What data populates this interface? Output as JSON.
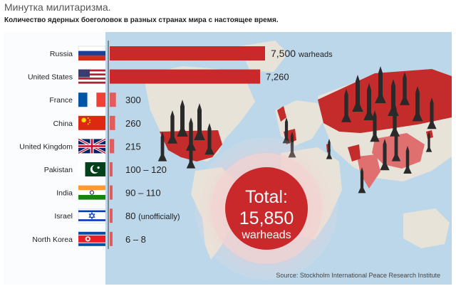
{
  "header": {
    "title": "Минутка милитаризма.",
    "subtitle": "Количество ядерных боеголовок в разных странах мира с настоящее время."
  },
  "colors": {
    "bar": "#c9292b",
    "bar_light": "#e35b5d",
    "ocean": "#bcd7ea",
    "land": "#e8e3d9",
    "highlight": "#c42b2b"
  },
  "chart_data": {
    "type": "bar",
    "orientation": "horizontal",
    "title": "",
    "categories": [
      "Russia",
      "United States",
      "France",
      "China",
      "United Kingdom",
      "Pakistan",
      "India",
      "Israel",
      "North Korea"
    ],
    "values": [
      7500,
      7260,
      300,
      260,
      215,
      110,
      100,
      80,
      7
    ],
    "value_labels": [
      "7,500 warheads",
      "7,260",
      "300",
      "260",
      "215",
      "100 – 120",
      "90 – 110",
      "80 (unofficially)",
      "6 – 8"
    ],
    "flag_icons": [
      "russia-flag",
      "usa-flag",
      "france-flag",
      "china-flag",
      "uk-flag",
      "pakistan-flag",
      "india-flag",
      "israel-flag",
      "north-korea-flag"
    ],
    "xlim": [
      0,
      7500
    ],
    "grid": false,
    "total": {
      "label": "Total:",
      "value": "15,850",
      "unit": "warheads"
    },
    "source": "Source: Stockholm International Peace Research Institute"
  }
}
